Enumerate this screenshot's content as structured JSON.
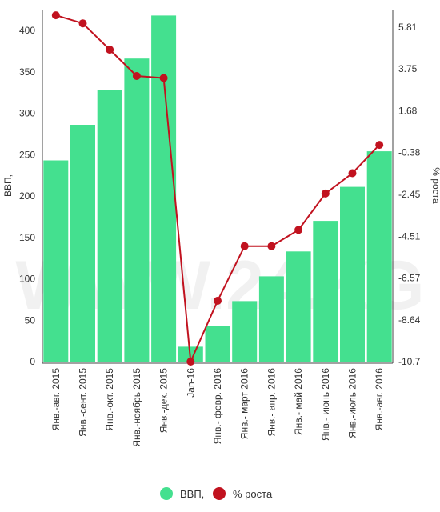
{
  "chart_data": {
    "type": "bar",
    "categories": [
      "Янв.-авг. 2015",
      "Янв.-сент. 2015",
      "Янв.-окт. 2015",
      "Янв.-ноябрь 2015",
      "Янв.-дек. 2015",
      "Jan-16",
      "Янв.- февр. 2016",
      "Янв.- март 2016",
      "Янв.- апр. 2016",
      "Янв.- май 2016",
      "Янв.- июнь 2016",
      "Янв.-июль 2016",
      "Янв.-авг. 2016"
    ],
    "series": [
      {
        "name": "ВВП,",
        "kind": "bar",
        "axis": "left",
        "color": "#44e08f",
        "values": [
          243,
          286,
          328,
          366,
          418,
          18,
          43,
          73,
          103,
          133,
          170,
          211,
          254
        ]
      },
      {
        "name": "% роста",
        "kind": "line",
        "axis": "right",
        "color": "#c1121f",
        "values": [
          6.4,
          6.0,
          4.7,
          3.4,
          3.3,
          -10.7,
          -7.7,
          -5.0,
          -5.0,
          -4.2,
          -2.4,
          -1.4,
          0.0
        ]
      }
    ],
    "ylabel": "ВВП,",
    "ylim": [
      0,
      400
    ],
    "yticks": [
      "0",
      "50",
      "100",
      "150",
      "200",
      "250",
      "300",
      "350",
      "400"
    ],
    "y2label": "% роста",
    "y2lim": [
      -10.7,
      5.81
    ],
    "y2ticks": [
      "-10.7",
      "-8.64",
      "-6.57",
      "-4.51",
      "-2.45",
      "-0.38",
      "1.68",
      "3.75",
      "5.81"
    ],
    "legend_position": "bottom",
    "grid": false,
    "watermark": "WWW.24.KG"
  }
}
